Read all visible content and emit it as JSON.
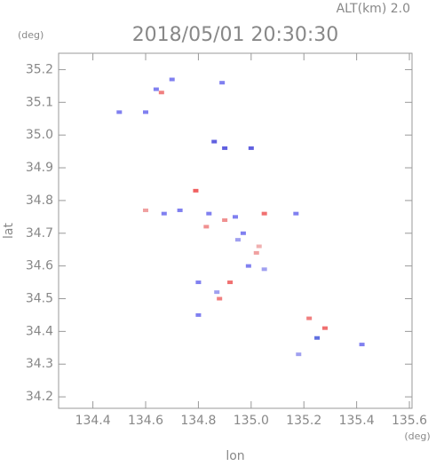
{
  "header": {
    "altitude": "ALT(km) 2.0",
    "y_unit": "(deg)",
    "x_unit": "(deg)"
  },
  "chart_data": {
    "type": "scatter",
    "title": "2018/05/01 20:30:30",
    "x_label": "lon",
    "y_label": "lat",
    "x": [
      134.66,
      134.7,
      134.5,
      134.6,
      134.89,
      134.86,
      134.9,
      135.0,
      134.6,
      134.67,
      134.79,
      134.84,
      134.9,
      134.94,
      135.05,
      134.95,
      135.02,
      134.99,
      135.05,
      134.8,
      134.87,
      134.92,
      135.17,
      135.22,
      135.25,
      135.18,
      135.42,
      134.8,
      134.64,
      134.83,
      134.97,
      135.03,
      134.88,
      135.28,
      134.73
    ],
    "y": [
      35.13,
      35.17,
      35.07,
      35.07,
      35.16,
      34.98,
      34.96,
      34.96,
      34.77,
      34.76,
      34.83,
      34.76,
      34.74,
      34.75,
      34.76,
      34.68,
      34.64,
      34.6,
      34.59,
      34.55,
      34.52,
      34.55,
      34.76,
      34.44,
      34.38,
      34.33,
      34.36,
      34.45,
      35.14,
      34.72,
      34.7,
      34.66,
      34.5,
      34.41,
      34.77
    ],
    "colors": [
      "#f08080",
      "#8080f0",
      "#8080f0",
      "#8080f0",
      "#8080f0",
      "#6060e0",
      "#6060e0",
      "#6060e0",
      "#f0a0a0",
      "#8080f0",
      "#f06060",
      "#8080f0",
      "#f09090",
      "#8080f0",
      "#f07070",
      "#a0a0f0",
      "#f0a0a0",
      "#8080f0",
      "#a0a0f0",
      "#8080f0",
      "#a0a0f0",
      "#f07070",
      "#8080f0",
      "#f08080",
      "#6070e0",
      "#a0a0f0",
      "#8080f0",
      "#8080f0",
      "#8080f0",
      "#f09090",
      "#8080f0",
      "#f0b0b0",
      "#f08080",
      "#f07070",
      "#8080f0"
    ],
    "xlim": [
      134.27,
      135.61
    ],
    "ylim": [
      34.165,
      35.25
    ],
    "xticks": [
      134.4,
      134.6,
      134.8,
      {
        "value": 135,
        "label": "135.0"
      },
      135.2,
      135.4,
      135.6
    ],
    "yticks": [
      34.2,
      34.3,
      34.4,
      34.5,
      34.6,
      34.7,
      34.8,
      34.9,
      {
        "value": 35,
        "label": "35.0"
      },
      35.1,
      35.2
    ]
  }
}
